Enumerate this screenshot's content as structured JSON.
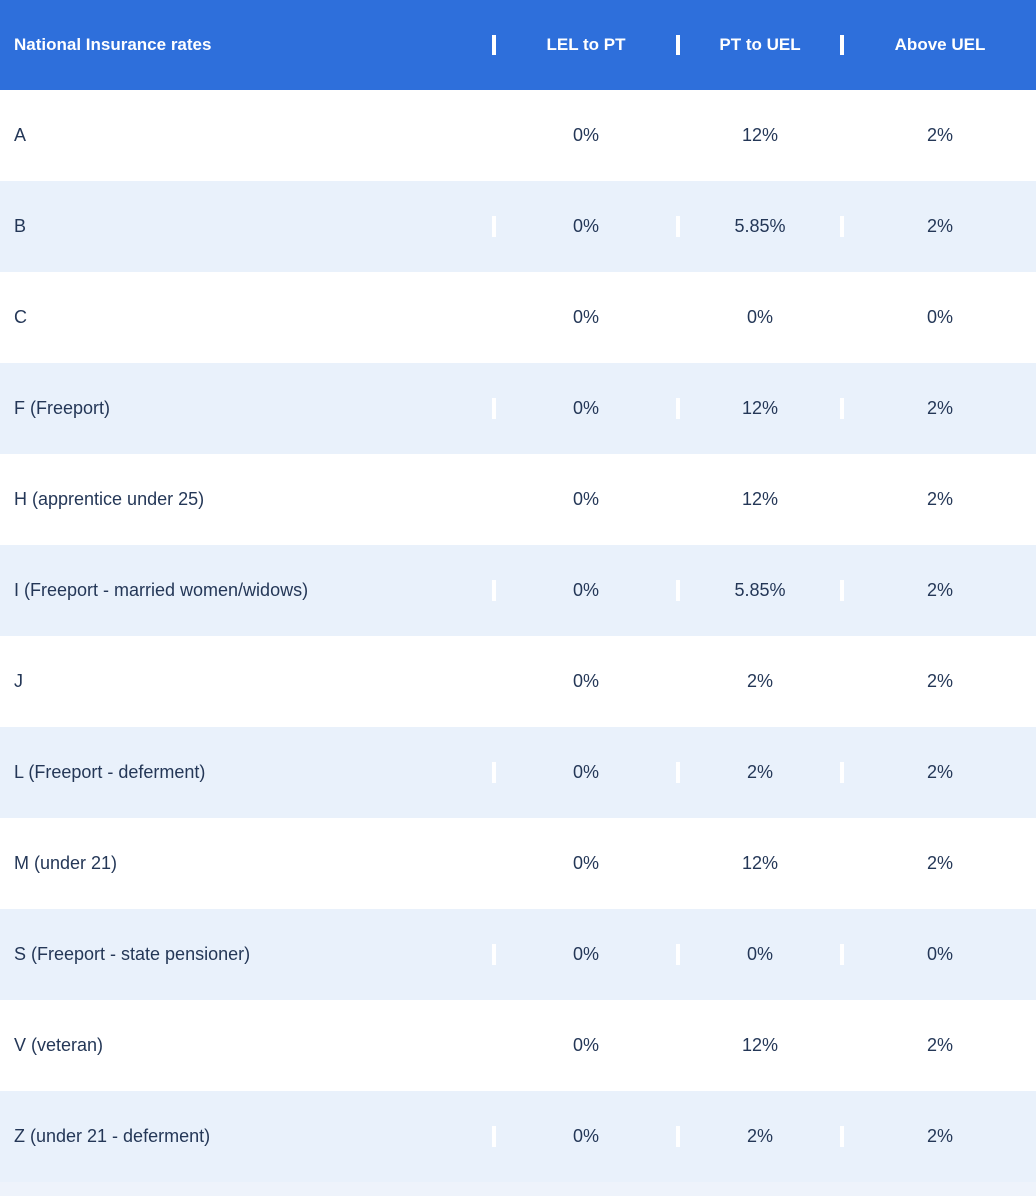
{
  "chart_data": {
    "type": "table",
    "title": "National Insurance rates",
    "columns": [
      "National Insurance rates",
      "LEL to PT",
      "PT to UEL",
      "Above UEL"
    ],
    "rows": [
      [
        "A",
        "0%",
        "12%",
        "2%"
      ],
      [
        "B",
        "0%",
        "5.85%",
        "2%"
      ],
      [
        "C",
        "0%",
        "0%",
        "0%"
      ],
      [
        "F (Freeport)",
        "0%",
        "12%",
        "2%"
      ],
      [
        "H (apprentice under 25)",
        "0%",
        "12%",
        "2%"
      ],
      [
        "I (Freeport - married women/widows)",
        "0%",
        "5.85%",
        "2%"
      ],
      [
        "J",
        "0%",
        "2%",
        "2%"
      ],
      [
        "L (Freeport - deferment)",
        "0%",
        "2%",
        "2%"
      ],
      [
        "M (under 21)",
        "0%",
        "12%",
        "2%"
      ],
      [
        "S (Freeport - state pensioner)",
        "0%",
        "0%",
        "0%"
      ],
      [
        "V (veteran)",
        "0%",
        "12%",
        "2%"
      ],
      [
        "Z (under 21 - deferment)",
        "0%",
        "2%",
        "2%"
      ]
    ],
    "layout": {
      "header_background": "#2e6fdb",
      "header_text_color": "#ffffff",
      "row_background": "#ffffff",
      "row_alternate_background": "#e9f1fb",
      "body_text_color": "#243757",
      "striped": true,
      "value_alignment": "center"
    }
  }
}
